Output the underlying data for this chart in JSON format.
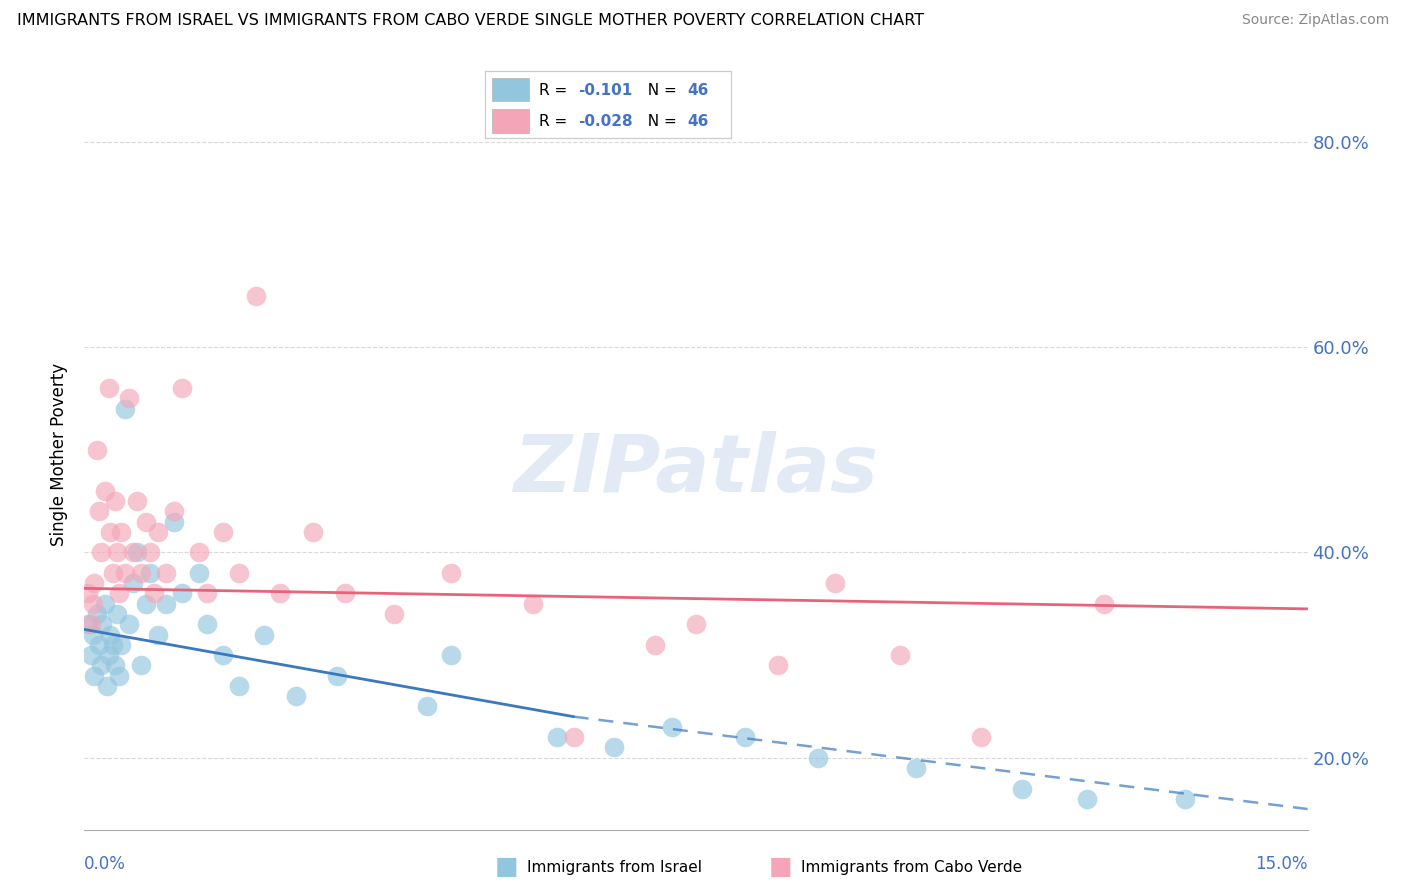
{
  "title": "IMMIGRANTS FROM ISRAEL VS IMMIGRANTS FROM CABO VERDE SINGLE MOTHER POVERTY CORRELATION CHART",
  "source": "Source: ZipAtlas.com",
  "ylabel": "Single Mother Poverty",
  "legend_label1": "Immigrants from Israel",
  "legend_label2": "Immigrants from Cabo Verde",
  "r1": "-0.101",
  "n1": "46",
  "r2": "-0.028",
  "n2": "46",
  "color_blue": "#92c5de",
  "color_pink": "#f4a6b8",
  "color_blue_line": "#3a78c0",
  "color_pink_line": "#e8637a",
  "xlim": [
    0.0,
    15.0
  ],
  "ylim": [
    13.0,
    86.0
  ],
  "yticks": [
    20.0,
    40.0,
    60.0,
    80.0
  ],
  "background_color": "#ffffff",
  "grid_color": "#d0d0d0",
  "israel_x": [
    0.05,
    0.08,
    0.1,
    0.12,
    0.15,
    0.18,
    0.2,
    0.22,
    0.25,
    0.28,
    0.3,
    0.32,
    0.35,
    0.38,
    0.4,
    0.42,
    0.45,
    0.5,
    0.55,
    0.6,
    0.65,
    0.7,
    0.75,
    0.8,
    0.9,
    1.0,
    1.1,
    1.2,
    1.4,
    1.5,
    1.7,
    1.9,
    2.2,
    2.6,
    3.1,
    4.2,
    4.5,
    5.8,
    6.5,
    7.2,
    8.1,
    9.0,
    10.2,
    11.5,
    12.3,
    13.5
  ],
  "israel_y": [
    33.0,
    30.0,
    32.0,
    28.0,
    34.0,
    31.0,
    29.0,
    33.0,
    35.0,
    27.0,
    30.0,
    32.0,
    31.0,
    29.0,
    34.0,
    28.0,
    31.0,
    54.0,
    33.0,
    37.0,
    40.0,
    29.0,
    35.0,
    38.0,
    32.0,
    35.0,
    43.0,
    36.0,
    38.0,
    33.0,
    30.0,
    27.0,
    32.0,
    26.0,
    28.0,
    25.0,
    30.0,
    22.0,
    21.0,
    23.0,
    22.0,
    20.0,
    19.0,
    17.0,
    16.0,
    16.0
  ],
  "caboverde_x": [
    0.05,
    0.08,
    0.1,
    0.12,
    0.15,
    0.18,
    0.2,
    0.25,
    0.3,
    0.32,
    0.35,
    0.38,
    0.4,
    0.42,
    0.45,
    0.5,
    0.55,
    0.6,
    0.65,
    0.7,
    0.75,
    0.8,
    0.85,
    0.9,
    1.0,
    1.1,
    1.2,
    1.4,
    1.5,
    1.7,
    1.9,
    2.1,
    2.4,
    2.8,
    3.2,
    3.8,
    4.5,
    5.5,
    6.0,
    7.0,
    7.5,
    8.5,
    9.2,
    10.0,
    11.0,
    12.5
  ],
  "caboverde_y": [
    36.0,
    33.0,
    35.0,
    37.0,
    50.0,
    44.0,
    40.0,
    46.0,
    56.0,
    42.0,
    38.0,
    45.0,
    40.0,
    36.0,
    42.0,
    38.0,
    55.0,
    40.0,
    45.0,
    38.0,
    43.0,
    40.0,
    36.0,
    42.0,
    38.0,
    44.0,
    56.0,
    40.0,
    36.0,
    42.0,
    38.0,
    65.0,
    36.0,
    42.0,
    36.0,
    34.0,
    38.0,
    35.0,
    22.0,
    31.0,
    33.0,
    29.0,
    37.0,
    30.0,
    22.0,
    35.0
  ],
  "watermark": "ZIPatlas",
  "israel_trend_x0": 0.0,
  "israel_trend_y0": 32.5,
  "israel_trend_x1": 6.0,
  "israel_trend_y1": 24.0,
  "israel_dash_x0": 6.0,
  "israel_dash_y0": 24.0,
  "israel_dash_x1": 15.0,
  "israel_dash_y1": 15.0,
  "cabo_trend_x0": 0.0,
  "cabo_trend_y0": 36.5,
  "cabo_trend_x1": 15.0,
  "cabo_trend_y1": 34.5
}
